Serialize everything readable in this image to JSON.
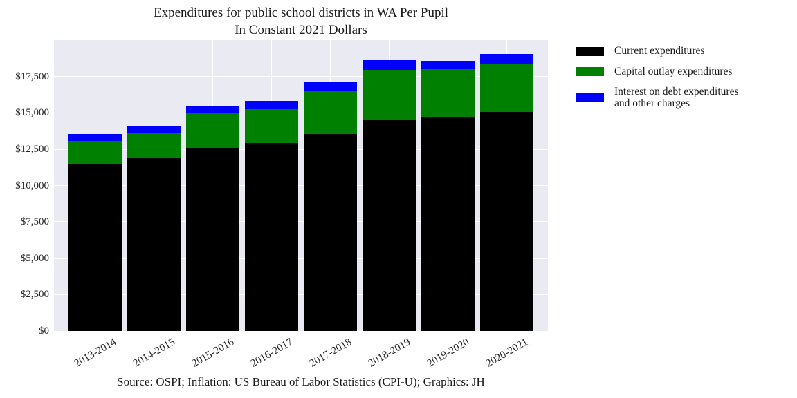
{
  "figure": {
    "title_line1": "Expenditures for public school districts in WA Per Pupil",
    "title_line2": "In Constant 2021 Dollars",
    "caption": "Source: OSPI; Inflation: US Bureau of Labor Statistics (CPI-U); Graphics: JH"
  },
  "colors": {
    "figure_background": "#ffffff",
    "plot_background": "#eaeaf2",
    "gridline": "#ffffff",
    "current_expenditures": "#000000",
    "capital_outlay": "#008000",
    "interest_on_debt": "#0000ff",
    "text": "#262626"
  },
  "chart_data": {
    "type": "bar",
    "stacked": true,
    "title": "Expenditures for public school districts in WA Per Pupil\nIn Constant 2021 Dollars",
    "caption": "Source: OSPI; Inflation: US Bureau of Labor Statistics (CPI-U); Graphics: JH",
    "categories": [
      "2013-2014",
      "2014-2015",
      "2015-2016",
      "2016-2017",
      "2017-2018",
      "2018-2019",
      "2019-2020",
      "2020-2021"
    ],
    "series": [
      {
        "name": "Current expenditures",
        "color": "#000000",
        "values": [
          11500,
          11900,
          12600,
          12900,
          13550,
          14550,
          14750,
          15050
        ]
      },
      {
        "name": "Capital outlay expenditures",
        "color": "#008000",
        "values": [
          1550,
          1750,
          2350,
          2350,
          3000,
          3400,
          3250,
          3300
        ]
      },
      {
        "name": "Interest on debt expenditures and other charges",
        "color": "#0000ff",
        "values": [
          500,
          450,
          500,
          550,
          600,
          650,
          550,
          700
        ]
      }
    ],
    "totals": [
      13550,
      14100,
      15450,
      15800,
      17150,
      18600,
      18550,
      19050
    ],
    "xlabel": "",
    "ylabel": "",
    "ylim": [
      0,
      20000
    ],
    "yticks": [
      0,
      2500,
      5000,
      7500,
      10000,
      12500,
      15000,
      17500
    ],
    "ytick_labels": [
      "$0",
      "$2,500",
      "$5,000",
      "$7,500",
      "$10,000",
      "$12,500",
      "$15,000",
      "$17,500"
    ],
    "xtick_rotation_deg": 30,
    "grid": true,
    "legend_position": "right-outside",
    "legend_labels": [
      "Current expenditures",
      "Capital outlay expenditures",
      "Interest on debt expenditures\nand other charges"
    ]
  }
}
